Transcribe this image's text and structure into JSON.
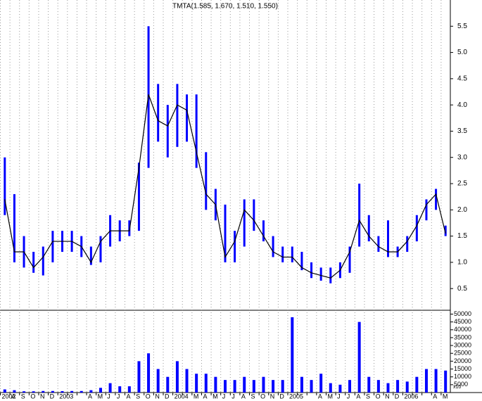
{
  "chart_data": {
    "type": "stock",
    "title": "TMTA(1.585, 1.670, 1.510, 1.550)",
    "categories": [
      "2002",
      "A",
      "S",
      "O",
      "N",
      "D",
      "2003",
      null,
      null,
      "A",
      "M",
      "J",
      "J",
      "A",
      "S",
      "O",
      "N",
      "D",
      "2004",
      null,
      "M",
      "A",
      "M",
      "J",
      "J",
      "A",
      "S",
      "O",
      "N",
      "D",
      "2005",
      null,
      null,
      "A",
      "M",
      "J",
      "J",
      "A",
      "S",
      "O",
      "N",
      "D",
      "2006",
      null,
      null,
      "A",
      "M"
    ],
    "high": [
      3.0,
      2.3,
      1.5,
      1.2,
      1.3,
      1.6,
      1.6,
      1.6,
      1.5,
      1.3,
      1.5,
      1.9,
      1.8,
      1.8,
      2.9,
      5.5,
      4.4,
      4.0,
      4.4,
      4.2,
      4.2,
      3.1,
      2.4,
      2.1,
      1.6,
      2.2,
      2.2,
      1.8,
      1.5,
      1.3,
      1.3,
      1.2,
      1.0,
      0.9,
      0.9,
      1.0,
      1.3,
      2.5,
      1.9,
      1.5,
      1.8,
      1.3,
      1.5,
      1.9,
      2.2,
      2.4,
      1.7
    ],
    "low": [
      1.9,
      1.0,
      0.9,
      0.8,
      0.75,
      1.0,
      1.2,
      1.2,
      1.1,
      0.95,
      1.0,
      1.3,
      1.4,
      1.5,
      1.6,
      2.8,
      3.3,
      3.0,
      3.2,
      3.3,
      2.8,
      2.0,
      1.8,
      1.0,
      1.0,
      1.3,
      1.6,
      1.4,
      1.1,
      1.0,
      1.0,
      0.85,
      0.7,
      0.65,
      0.6,
      0.7,
      0.8,
      1.3,
      1.4,
      1.2,
      1.1,
      1.1,
      1.2,
      1.4,
      1.8,
      2.0,
      1.5
    ],
    "close": [
      2.2,
      1.2,
      1.2,
      0.9,
      1.1,
      1.4,
      1.4,
      1.4,
      1.3,
      1.0,
      1.4,
      1.6,
      1.6,
      1.6,
      2.8,
      4.2,
      3.7,
      3.6,
      4.0,
      3.9,
      3.1,
      2.3,
      2.1,
      1.1,
      1.4,
      2.0,
      1.8,
      1.5,
      1.2,
      1.1,
      1.1,
      0.9,
      0.8,
      0.75,
      0.7,
      0.85,
      1.2,
      1.8,
      1.5,
      1.3,
      1.2,
      1.2,
      1.4,
      1.7,
      2.1,
      2.3,
      1.55
    ],
    "volume": [
      2000,
      1500,
      800,
      800,
      1000,
      1000,
      900,
      1000,
      1000,
      1500,
      3000,
      6000,
      4000,
      4000,
      20000,
      25000,
      15000,
      10000,
      20000,
      15000,
      12000,
      12000,
      10000,
      8000,
      8000,
      10000,
      8000,
      10000,
      8000,
      8000,
      48000,
      10000,
      8000,
      12000,
      6000,
      5000,
      8000,
      45000,
      10000,
      8000,
      6000,
      8000,
      7000,
      10000,
      15000,
      15000,
      14000
    ],
    "ylim": [
      0.1,
      6.0
    ],
    "yticks": [
      {
        "value": 0.5,
        "label": "0.5"
      },
      {
        "value": 1,
        "label": "1.0"
      },
      {
        "value": 1.5,
        "label": "1.5"
      },
      {
        "value": 2,
        "label": "2.0"
      },
      {
        "value": 2.5,
        "label": "2.5"
      },
      {
        "value": 3,
        "label": "3.0"
      },
      {
        "value": 3.5,
        "label": "3.5"
      },
      {
        "value": 4,
        "label": "4.0"
      },
      {
        "value": 4.5,
        "label": "4.5"
      },
      {
        "value": 5,
        "label": "5.0"
      },
      {
        "value": 5.5,
        "label": "5.5"
      }
    ],
    "volume_lim": [
      0,
      52000
    ],
    "volume_ticks": [
      5000,
      10000,
      15000,
      20000,
      25000,
      30000,
      35000,
      40000,
      45000,
      50000
    ],
    "volume_unit": "x10",
    "price_color": "#0000ff",
    "close_color": "#000000",
    "volume_color": "#0000ff",
    "grid": true
  }
}
